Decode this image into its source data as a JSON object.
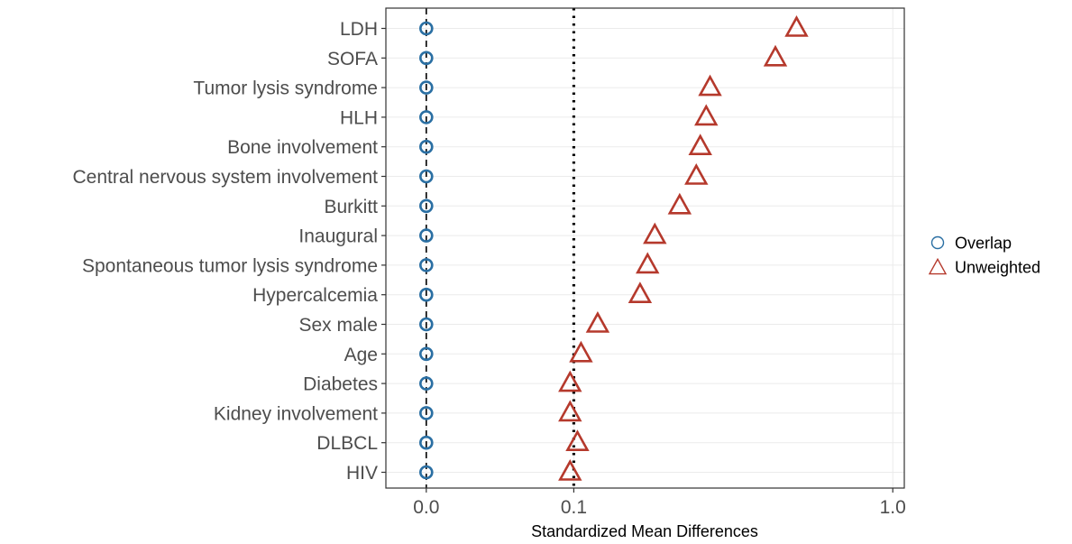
{
  "chart_data": {
    "type": "scatter",
    "title": "",
    "xlabel": "Standardized Mean Differences",
    "ylabel": "",
    "xlim": [
      -0.0075,
      1.05
    ],
    "x_ticks": [
      0.0,
      0.1,
      1.0
    ],
    "x_tick_labels": [
      "0.0",
      "0.1",
      "1.0"
    ],
    "x_scale": "sqrt",
    "threshold": 0.1,
    "threshold_style": "dotted",
    "zero_line_style": "dashed",
    "grid": true,
    "legend_position": "right",
    "categories": [
      "LDH",
      "SOFA",
      "Tumor lysis syndrome",
      "HLH",
      "Bone involvement",
      "Central nervous system involvement",
      "Burkitt",
      "Inaugural",
      "Spontaneous tumor lysis syndrome",
      "Hypercalcemia",
      "Sex male",
      "Age",
      "Diabetes",
      "Kidney involvement",
      "DLBCL",
      "HIV"
    ],
    "series": [
      {
        "name": "Overlap",
        "marker": "circle",
        "color": "#2a6fa3",
        "values": [
          0,
          0,
          0,
          0,
          0,
          0,
          0,
          0,
          0,
          0,
          0,
          0,
          0,
          0,
          0,
          0
        ]
      },
      {
        "name": "Unweighted",
        "marker": "triangle",
        "color": "#b5392c",
        "values": [
          0.63,
          0.56,
          0.37,
          0.36,
          0.345,
          0.335,
          0.295,
          0.24,
          0.225,
          0.21,
          0.135,
          0.11,
          0.095,
          0.095,
          0.105,
          0.095
        ]
      }
    ]
  }
}
